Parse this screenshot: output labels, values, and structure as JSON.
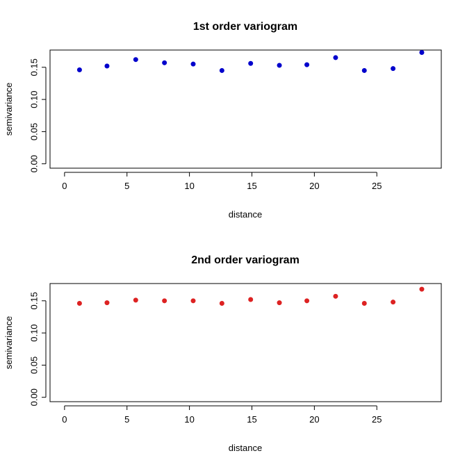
{
  "chart_data": [
    {
      "type": "scatter",
      "title": "1st order variogram",
      "xlabel": "distance",
      "ylabel": "semivariance",
      "xlim": [
        0,
        29
      ],
      "ylim": [
        0,
        0.17
      ],
      "xticks": [
        "0",
        "5",
        "10",
        "15",
        "20",
        "25"
      ],
      "yticks": [
        "0.00",
        "0.05",
        "0.10",
        "0.15"
      ],
      "grid": false,
      "point_color": "#0000cc",
      "x": [
        1.2,
        3.4,
        5.7,
        8.0,
        10.3,
        12.6,
        14.9,
        17.2,
        19.4,
        21.7,
        24.0,
        26.3,
        28.6
      ],
      "y": [
        0.146,
        0.152,
        0.162,
        0.157,
        0.155,
        0.145,
        0.156,
        0.153,
        0.154,
        0.165,
        0.145,
        0.148,
        0.173
      ]
    },
    {
      "type": "scatter",
      "title": "2nd order variogram",
      "xlabel": "distance",
      "ylabel": "semivariance",
      "xlim": [
        0,
        29
      ],
      "ylim": [
        0,
        0.17
      ],
      "xticks": [
        "0",
        "5",
        "10",
        "15",
        "20",
        "25"
      ],
      "yticks": [
        "0.00",
        "0.05",
        "0.10",
        "0.15"
      ],
      "grid": false,
      "point_color": "#dd2222",
      "x": [
        1.2,
        3.4,
        5.7,
        8.0,
        10.3,
        12.6,
        14.9,
        17.2,
        19.4,
        21.7,
        24.0,
        26.3,
        28.6
      ],
      "y": [
        0.146,
        0.147,
        0.151,
        0.15,
        0.15,
        0.146,
        0.152,
        0.147,
        0.15,
        0.157,
        0.146,
        0.148,
        0.168
      ]
    }
  ]
}
